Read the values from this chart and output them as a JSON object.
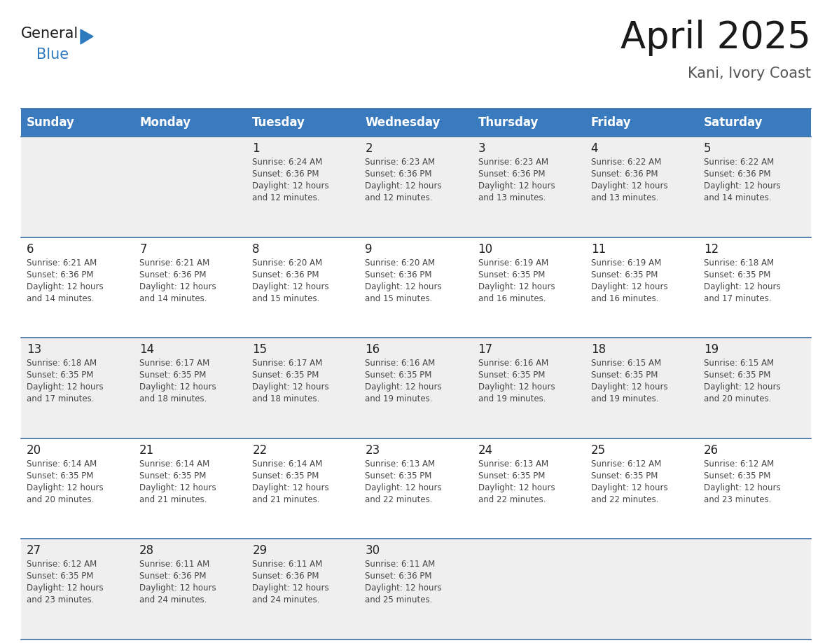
{
  "title": "April 2025",
  "subtitle": "Kani, Ivory Coast",
  "header_bg_color": "#3a7bbf",
  "header_text_color": "#ffffff",
  "cell_bg_white": "#ffffff",
  "cell_bg_gray": "#efefef",
  "border_color": "#3d6fa3",
  "day_names": [
    "Sunday",
    "Monday",
    "Tuesday",
    "Wednesday",
    "Thursday",
    "Friday",
    "Saturday"
  ],
  "title_color": "#1a1a1a",
  "subtitle_color": "#555555",
  "day_num_color": "#222222",
  "cell_text_color": "#444444",
  "logo_general_color": "#1a1a1a",
  "logo_blue_color": "#2e7abf",
  "weeks": [
    [
      {
        "day": "",
        "lines": []
      },
      {
        "day": "",
        "lines": []
      },
      {
        "day": "1",
        "lines": [
          "Sunrise: 6:24 AM",
          "Sunset: 6:36 PM",
          "Daylight: 12 hours",
          "and 12 minutes."
        ]
      },
      {
        "day": "2",
        "lines": [
          "Sunrise: 6:23 AM",
          "Sunset: 6:36 PM",
          "Daylight: 12 hours",
          "and 12 minutes."
        ]
      },
      {
        "day": "3",
        "lines": [
          "Sunrise: 6:23 AM",
          "Sunset: 6:36 PM",
          "Daylight: 12 hours",
          "and 13 minutes."
        ]
      },
      {
        "day": "4",
        "lines": [
          "Sunrise: 6:22 AM",
          "Sunset: 6:36 PM",
          "Daylight: 12 hours",
          "and 13 minutes."
        ]
      },
      {
        "day": "5",
        "lines": [
          "Sunrise: 6:22 AM",
          "Sunset: 6:36 PM",
          "Daylight: 12 hours",
          "and 14 minutes."
        ]
      }
    ],
    [
      {
        "day": "6",
        "lines": [
          "Sunrise: 6:21 AM",
          "Sunset: 6:36 PM",
          "Daylight: 12 hours",
          "and 14 minutes."
        ]
      },
      {
        "day": "7",
        "lines": [
          "Sunrise: 6:21 AM",
          "Sunset: 6:36 PM",
          "Daylight: 12 hours",
          "and 14 minutes."
        ]
      },
      {
        "day": "8",
        "lines": [
          "Sunrise: 6:20 AM",
          "Sunset: 6:36 PM",
          "Daylight: 12 hours",
          "and 15 minutes."
        ]
      },
      {
        "day": "9",
        "lines": [
          "Sunrise: 6:20 AM",
          "Sunset: 6:36 PM",
          "Daylight: 12 hours",
          "and 15 minutes."
        ]
      },
      {
        "day": "10",
        "lines": [
          "Sunrise: 6:19 AM",
          "Sunset: 6:35 PM",
          "Daylight: 12 hours",
          "and 16 minutes."
        ]
      },
      {
        "day": "11",
        "lines": [
          "Sunrise: 6:19 AM",
          "Sunset: 6:35 PM",
          "Daylight: 12 hours",
          "and 16 minutes."
        ]
      },
      {
        "day": "12",
        "lines": [
          "Sunrise: 6:18 AM",
          "Sunset: 6:35 PM",
          "Daylight: 12 hours",
          "and 17 minutes."
        ]
      }
    ],
    [
      {
        "day": "13",
        "lines": [
          "Sunrise: 6:18 AM",
          "Sunset: 6:35 PM",
          "Daylight: 12 hours",
          "and 17 minutes."
        ]
      },
      {
        "day": "14",
        "lines": [
          "Sunrise: 6:17 AM",
          "Sunset: 6:35 PM",
          "Daylight: 12 hours",
          "and 18 minutes."
        ]
      },
      {
        "day": "15",
        "lines": [
          "Sunrise: 6:17 AM",
          "Sunset: 6:35 PM",
          "Daylight: 12 hours",
          "and 18 minutes."
        ]
      },
      {
        "day": "16",
        "lines": [
          "Sunrise: 6:16 AM",
          "Sunset: 6:35 PM",
          "Daylight: 12 hours",
          "and 19 minutes."
        ]
      },
      {
        "day": "17",
        "lines": [
          "Sunrise: 6:16 AM",
          "Sunset: 6:35 PM",
          "Daylight: 12 hours",
          "and 19 minutes."
        ]
      },
      {
        "day": "18",
        "lines": [
          "Sunrise: 6:15 AM",
          "Sunset: 6:35 PM",
          "Daylight: 12 hours",
          "and 19 minutes."
        ]
      },
      {
        "day": "19",
        "lines": [
          "Sunrise: 6:15 AM",
          "Sunset: 6:35 PM",
          "Daylight: 12 hours",
          "and 20 minutes."
        ]
      }
    ],
    [
      {
        "day": "20",
        "lines": [
          "Sunrise: 6:14 AM",
          "Sunset: 6:35 PM",
          "Daylight: 12 hours",
          "and 20 minutes."
        ]
      },
      {
        "day": "21",
        "lines": [
          "Sunrise: 6:14 AM",
          "Sunset: 6:35 PM",
          "Daylight: 12 hours",
          "and 21 minutes."
        ]
      },
      {
        "day": "22",
        "lines": [
          "Sunrise: 6:14 AM",
          "Sunset: 6:35 PM",
          "Daylight: 12 hours",
          "and 21 minutes."
        ]
      },
      {
        "day": "23",
        "lines": [
          "Sunrise: 6:13 AM",
          "Sunset: 6:35 PM",
          "Daylight: 12 hours",
          "and 22 minutes."
        ]
      },
      {
        "day": "24",
        "lines": [
          "Sunrise: 6:13 AM",
          "Sunset: 6:35 PM",
          "Daylight: 12 hours",
          "and 22 minutes."
        ]
      },
      {
        "day": "25",
        "lines": [
          "Sunrise: 6:12 AM",
          "Sunset: 6:35 PM",
          "Daylight: 12 hours",
          "and 22 minutes."
        ]
      },
      {
        "day": "26",
        "lines": [
          "Sunrise: 6:12 AM",
          "Sunset: 6:35 PM",
          "Daylight: 12 hours",
          "and 23 minutes."
        ]
      }
    ],
    [
      {
        "day": "27",
        "lines": [
          "Sunrise: 6:12 AM",
          "Sunset: 6:35 PM",
          "Daylight: 12 hours",
          "and 23 minutes."
        ]
      },
      {
        "day": "28",
        "lines": [
          "Sunrise: 6:11 AM",
          "Sunset: 6:36 PM",
          "Daylight: 12 hours",
          "and 24 minutes."
        ]
      },
      {
        "day": "29",
        "lines": [
          "Sunrise: 6:11 AM",
          "Sunset: 6:36 PM",
          "Daylight: 12 hours",
          "and 24 minutes."
        ]
      },
      {
        "day": "30",
        "lines": [
          "Sunrise: 6:11 AM",
          "Sunset: 6:36 PM",
          "Daylight: 12 hours",
          "and 25 minutes."
        ]
      },
      {
        "day": "",
        "lines": []
      },
      {
        "day": "",
        "lines": []
      },
      {
        "day": "",
        "lines": []
      }
    ]
  ],
  "row_colors": [
    "#efefef",
    "#ffffff",
    "#efefef",
    "#ffffff",
    "#efefef"
  ]
}
